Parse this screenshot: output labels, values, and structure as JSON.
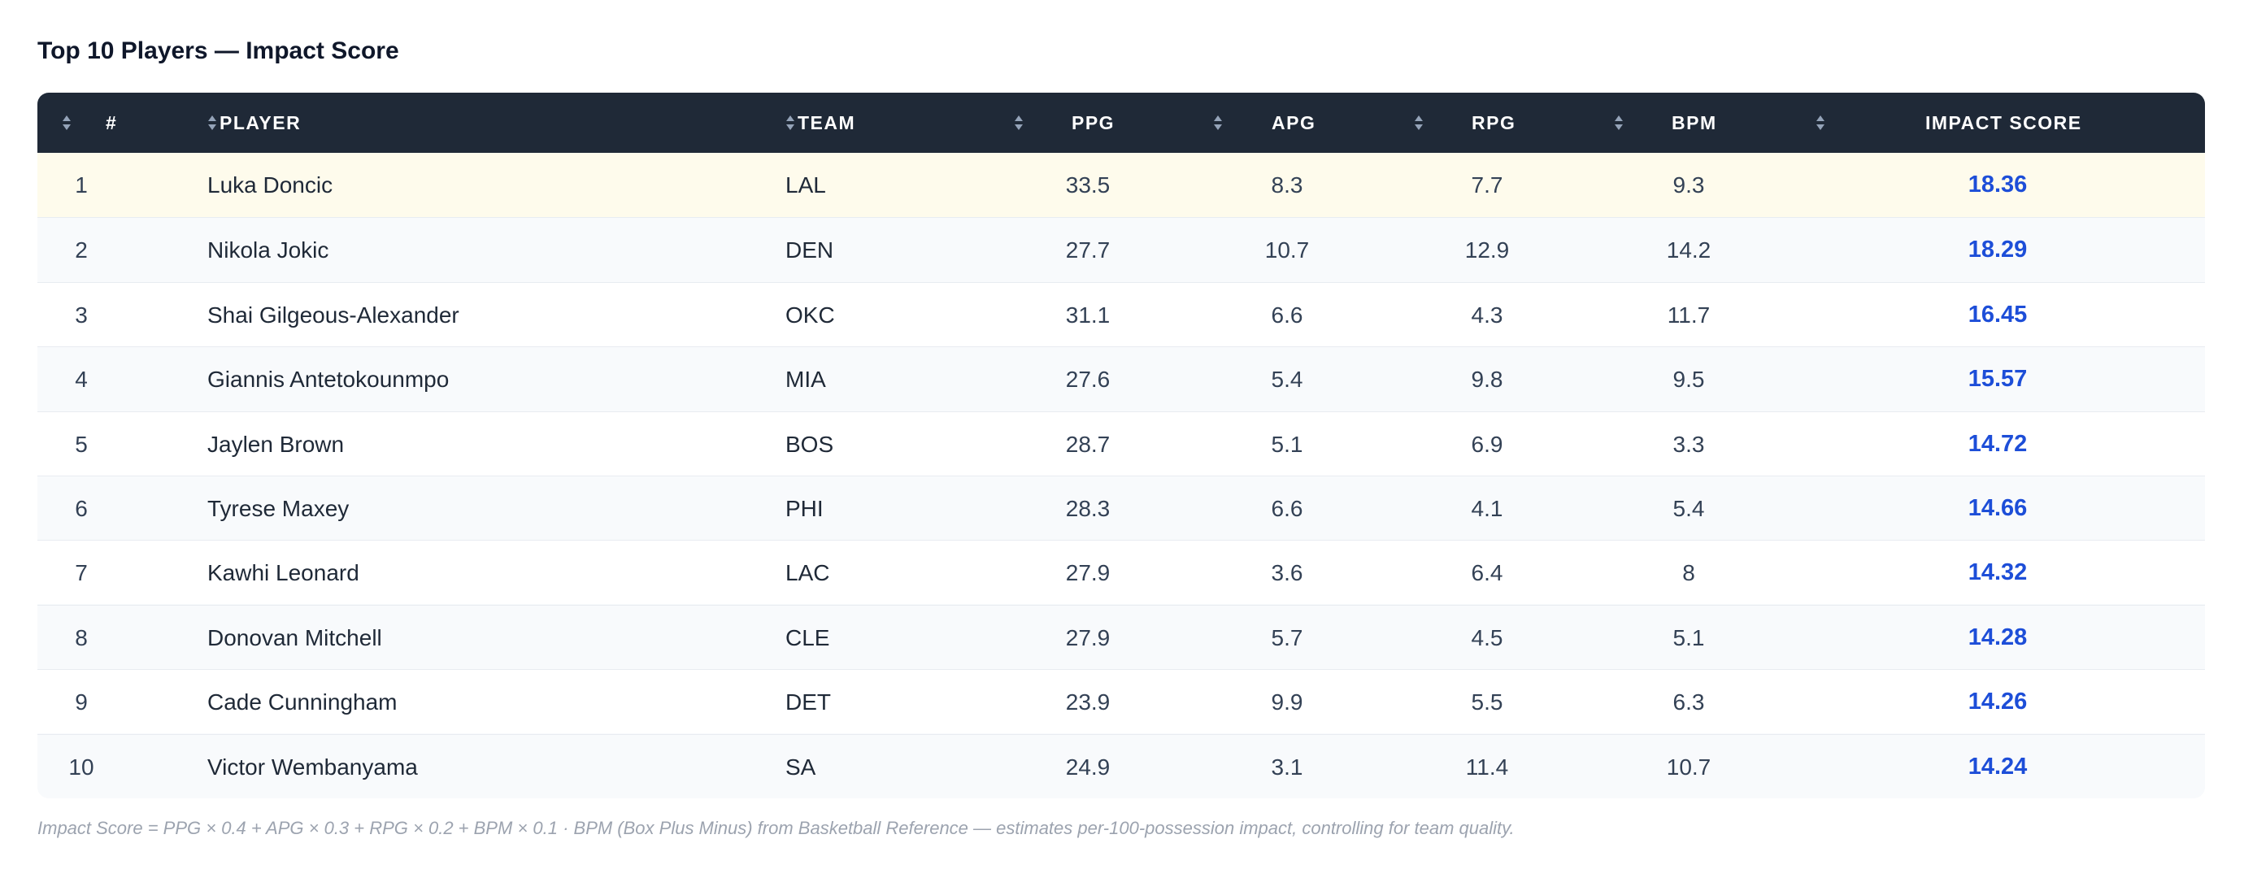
{
  "title": "Top 10 Players — Impact Score",
  "columns": {
    "rank": "#",
    "player": "PLAYER",
    "team": "TEAM",
    "ppg": "PPG",
    "apg": "APG",
    "rpg": "RPG",
    "bpm": "BPM",
    "impact": "IMPACT SCORE"
  },
  "icons": {
    "sort": "sort-updown-icon"
  },
  "colors": {
    "header_bg": "#1f2937",
    "highlight_row": "#fefbec",
    "impact_text": "#1d4ed8"
  },
  "rows": [
    {
      "rank": "1",
      "player": "Luka Doncic",
      "team": "LAL",
      "ppg": "33.5",
      "apg": "8.3",
      "rpg": "7.7",
      "bpm": "9.3",
      "impact": "18.36"
    },
    {
      "rank": "2",
      "player": "Nikola Jokic",
      "team": "DEN",
      "ppg": "27.7",
      "apg": "10.7",
      "rpg": "12.9",
      "bpm": "14.2",
      "impact": "18.29"
    },
    {
      "rank": "3",
      "player": "Shai Gilgeous-Alexander",
      "team": "OKC",
      "ppg": "31.1",
      "apg": "6.6",
      "rpg": "4.3",
      "bpm": "11.7",
      "impact": "16.45"
    },
    {
      "rank": "4",
      "player": "Giannis Antetokounmpo",
      "team": "MIA",
      "ppg": "27.6",
      "apg": "5.4",
      "rpg": "9.8",
      "bpm": "9.5",
      "impact": "15.57"
    },
    {
      "rank": "5",
      "player": "Jaylen Brown",
      "team": "BOS",
      "ppg": "28.7",
      "apg": "5.1",
      "rpg": "6.9",
      "bpm": "3.3",
      "impact": "14.72"
    },
    {
      "rank": "6",
      "player": "Tyrese Maxey",
      "team": "PHI",
      "ppg": "28.3",
      "apg": "6.6",
      "rpg": "4.1",
      "bpm": "5.4",
      "impact": "14.66"
    },
    {
      "rank": "7",
      "player": "Kawhi Leonard",
      "team": "LAC",
      "ppg": "27.9",
      "apg": "3.6",
      "rpg": "6.4",
      "bpm": "8",
      "impact": "14.32"
    },
    {
      "rank": "8",
      "player": "Donovan Mitchell",
      "team": "CLE",
      "ppg": "27.9",
      "apg": "5.7",
      "rpg": "4.5",
      "bpm": "5.1",
      "impact": "14.28"
    },
    {
      "rank": "9",
      "player": "Cade Cunningham",
      "team": "DET",
      "ppg": "23.9",
      "apg": "9.9",
      "rpg": "5.5",
      "bpm": "6.3",
      "impact": "14.26"
    },
    {
      "rank": "10",
      "player": "Victor Wembanyama",
      "team": "SA",
      "ppg": "24.9",
      "apg": "3.1",
      "rpg": "11.4",
      "bpm": "10.7",
      "impact": "14.24"
    }
  ],
  "footnote": "Impact Score = PPG × 0.4 + APG × 0.3 + RPG × 0.2 + BPM × 0.1 · BPM (Box Plus Minus) from Basketball Reference — estimates per-100-possession impact, controlling for team quality."
}
